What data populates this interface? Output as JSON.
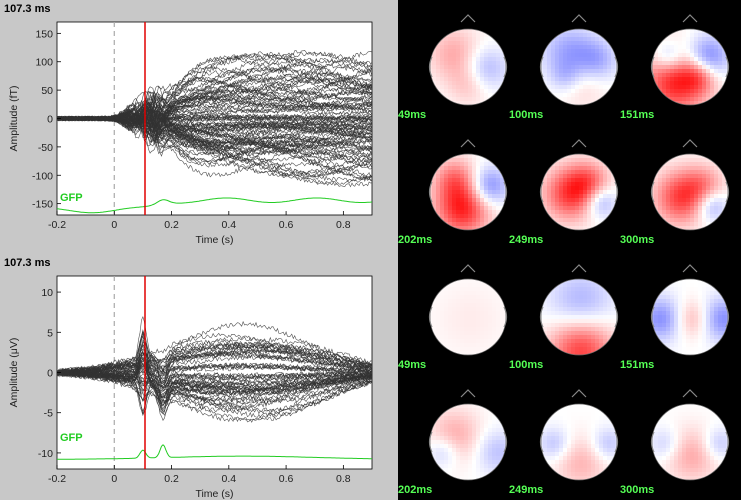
{
  "panels": [
    {
      "id": "meg",
      "time_label": "107.3 ms",
      "ylabel": "Amplitude (fT)",
      "xlabel": "Time (s)",
      "gfp_label": "GFP",
      "xticks": [
        "-0.2",
        "0",
        "0.2",
        "0.4",
        "0.6",
        "0.8"
      ],
      "yticks": [
        "150",
        "100",
        "50",
        "0",
        "-50",
        "-100",
        "-150"
      ]
    },
    {
      "id": "eeg",
      "time_label": "107.3 ms",
      "ylabel": "Amplitude (μV)",
      "xlabel": "Time (s)",
      "gfp_label": "GFP",
      "xticks": [
        "-0.2",
        "0",
        "0.2",
        "0.4",
        "0.6",
        "0.8"
      ],
      "yticks": [
        "10",
        "5",
        "0",
        "-5",
        "-10"
      ]
    }
  ],
  "chart_data": [
    {
      "type": "line",
      "xlabel": "Time (s)",
      "ylabel": "Amplitude (fT)",
      "xlim": [
        -0.2,
        0.9
      ],
      "ylim": [
        -170,
        170
      ],
      "current_time_s": 0.1073,
      "stimulus_time_s": 0,
      "n_channels": 102,
      "gfp_label": "GFP",
      "colors": {
        "traces": "#333333",
        "cursor": "#e00000",
        "gfp": "#22cc22",
        "zero_line": "#aaaaaa"
      }
    },
    {
      "type": "line",
      "xlabel": "Time (s)",
      "ylabel": "Amplitude (μV)",
      "xlim": [
        -0.2,
        0.9
      ],
      "ylim": [
        -12,
        12
      ],
      "current_time_s": 0.1073,
      "stimulus_time_s": 0,
      "n_channels": 60,
      "gfp_label": "GFP",
      "colors": {
        "traces": "#333333",
        "cursor": "#e00000",
        "gfp": "#22cc22",
        "zero_line": "#aaaaaa"
      }
    }
  ],
  "topomaps": [
    {
      "label": "49ms",
      "row": 0,
      "col": 0,
      "pattern": "meg49"
    },
    {
      "label": "100ms",
      "row": 0,
      "col": 1,
      "pattern": "meg100"
    },
    {
      "label": "151ms",
      "row": 0,
      "col": 2,
      "pattern": "meg151"
    },
    {
      "label": "202ms",
      "row": 1,
      "col": 0,
      "pattern": "meg202"
    },
    {
      "label": "249ms",
      "row": 1,
      "col": 1,
      "pattern": "meg249"
    },
    {
      "label": "300ms",
      "row": 1,
      "col": 2,
      "pattern": "meg300"
    },
    {
      "label": "49ms",
      "row": 2,
      "col": 0,
      "pattern": "eeg49"
    },
    {
      "label": "100ms",
      "row": 2,
      "col": 1,
      "pattern": "eeg100"
    },
    {
      "label": "151ms",
      "row": 2,
      "col": 2,
      "pattern": "eeg151"
    },
    {
      "label": "202ms",
      "row": 3,
      "col": 0,
      "pattern": "eeg202"
    },
    {
      "label": "249ms",
      "row": 3,
      "col": 1,
      "pattern": "eeg249"
    },
    {
      "label": "300ms",
      "row": 3,
      "col": 2,
      "pattern": "eeg300"
    }
  ]
}
